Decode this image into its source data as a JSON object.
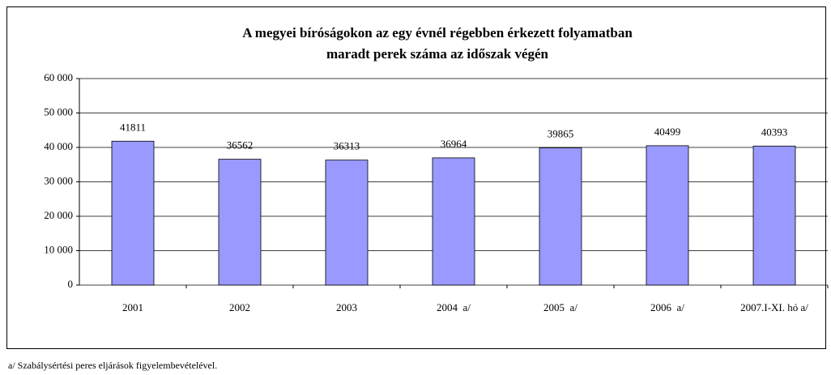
{
  "chart_data": {
    "type": "bar",
    "title": [
      "A megyei bíróságokon az egy évnél régebben érkezett folyamatban",
      "maradt perek száma az időszak végén"
    ],
    "categories": [
      "2001",
      "2002",
      "2003",
      "2004  a/",
      "2005  a/",
      "2006  a/",
      "2007.I-XI. hó a/"
    ],
    "values": [
      41811,
      36562,
      36313,
      36964,
      39865,
      40499,
      40393
    ],
    "color": "#9999ff",
    "ylim": [
      0,
      60000
    ],
    "yticks": [
      0,
      {
        "value": 10000,
        "label": "10 000"
      },
      {
        "value": 20000,
        "label": "20 000"
      },
      {
        "value": 30000,
        "label": "30 000"
      },
      {
        "value": 40000,
        "label": "40 000"
      },
      {
        "value": 50000,
        "label": "50 000"
      },
      {
        "value": 60000,
        "label": "60 000"
      }
    ],
    "grid": true,
    "footnote": "a/ Szabálysértési peres eljárások figyelembevételével."
  }
}
